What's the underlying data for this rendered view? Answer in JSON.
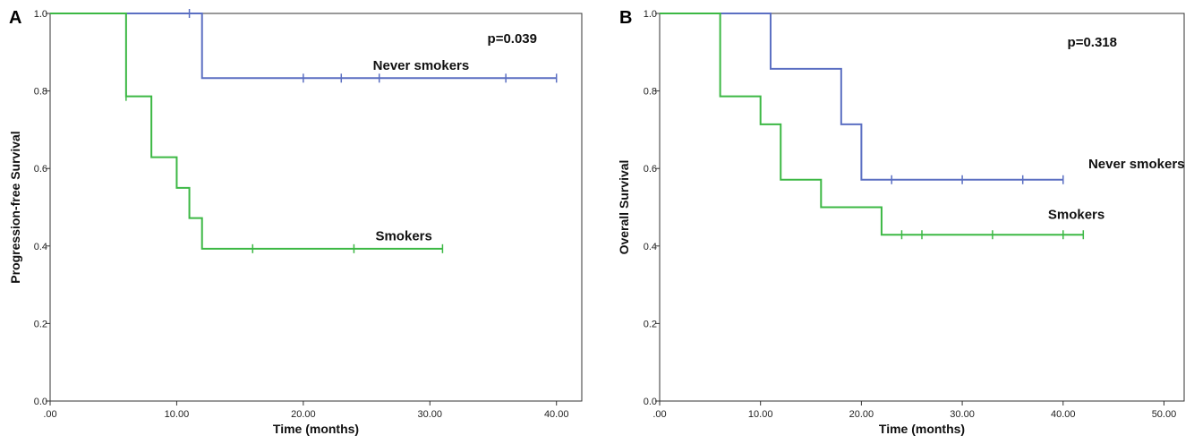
{
  "chart_data": [
    {
      "type": "line",
      "panel_label": "A",
      "xlabel": "Time (months)",
      "ylabel": "Progression-free Survival",
      "xlim": [
        0,
        42
      ],
      "ylim": [
        0,
        1.0
      ],
      "x_ticks": [
        0,
        10,
        20,
        30,
        40
      ],
      "x_tick_labels": [
        ".00",
        "10.00",
        "20.00",
        "30.00",
        "40.00"
      ],
      "y_ticks": [
        0,
        0.2,
        0.4,
        0.6,
        0.8,
        1.0
      ],
      "y_tick_labels": [
        "0.0",
        "0.2",
        "0.4",
        "0.6",
        "0.8",
        "1.0"
      ],
      "p_value": "p=0.039",
      "series": [
        {
          "name": "Never smokers",
          "color": "#5b6fc2",
          "steps": [
            [
              0,
              1.0
            ],
            [
              12,
              0.833
            ],
            [
              40,
              0.833
            ]
          ],
          "censored": [
            [
              11,
              1.0
            ],
            [
              20,
              0.833
            ],
            [
              23,
              0.833
            ],
            [
              26,
              0.833
            ],
            [
              36,
              0.833
            ],
            [
              40,
              0.833
            ]
          ]
        },
        {
          "name": "Smokers",
          "color": "#3cb844",
          "steps": [
            [
              0,
              1.0
            ],
            [
              6,
              0.786
            ],
            [
              8,
              0.629
            ],
            [
              10,
              0.55
            ],
            [
              11,
              0.472
            ],
            [
              12,
              0.393
            ],
            [
              31,
              0.393
            ]
          ],
          "censored": [
            [
              6,
              0.786
            ],
            [
              16,
              0.393
            ],
            [
              24,
              0.393
            ],
            [
              31,
              0.393
            ]
          ]
        }
      ],
      "labels": [
        {
          "text": "Never smokers",
          "x": 25.5,
          "y": 0.855
        },
        {
          "text": "Smokers",
          "x": 25.7,
          "y": 0.415
        }
      ]
    },
    {
      "type": "line",
      "panel_label": "B",
      "xlabel": "Time (months)",
      "ylabel": "Overall Survival",
      "xlim": [
        0,
        52
      ],
      "ylim": [
        0,
        1.0
      ],
      "x_ticks": [
        0,
        10,
        20,
        30,
        40,
        50
      ],
      "x_tick_labels": [
        ".00",
        "10.00",
        "20.00",
        "30.00",
        "40.00",
        "50.00"
      ],
      "y_ticks": [
        0,
        0.2,
        0.4,
        0.6,
        0.8,
        1.0
      ],
      "y_tick_labels": [
        "0.0",
        "0.2",
        "0.4",
        "0.6",
        "0.8",
        "1.0"
      ],
      "p_value": "p=0.318",
      "series": [
        {
          "name": "Never smokers",
          "color": "#5b6fc2",
          "steps": [
            [
              0,
              1.0
            ],
            [
              11,
              0.857
            ],
            [
              18,
              0.714
            ],
            [
              20,
              0.571
            ],
            [
              40,
              0.571
            ]
          ],
          "censored": [
            [
              23,
              0.571
            ],
            [
              30,
              0.571
            ],
            [
              36,
              0.571
            ],
            [
              40,
              0.571
            ]
          ]
        },
        {
          "name": "Smokers",
          "color": "#3cb844",
          "steps": [
            [
              0,
              1.0
            ],
            [
              6,
              0.786
            ],
            [
              10,
              0.714
            ],
            [
              12,
              0.571
            ],
            [
              16,
              0.5
            ],
            [
              22,
              0.429
            ],
            [
              42,
              0.429
            ]
          ],
          "censored": [
            [
              24,
              0.429
            ],
            [
              26,
              0.429
            ],
            [
              33,
              0.429
            ],
            [
              40,
              0.429
            ],
            [
              42,
              0.429
            ]
          ]
        }
      ],
      "labels": [
        {
          "text": "Never smokers",
          "x": 42.5,
          "y": 0.6
        },
        {
          "text": "Smokers",
          "x": 38.5,
          "y": 0.47
        }
      ]
    }
  ]
}
